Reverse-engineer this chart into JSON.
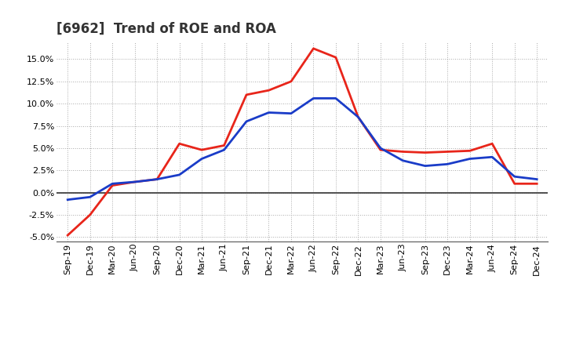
{
  "title": "[6962]  Trend of ROE and ROA",
  "labels": [
    "Sep-19",
    "Dec-19",
    "Mar-20",
    "Jun-20",
    "Sep-20",
    "Dec-20",
    "Mar-21",
    "Jun-21",
    "Sep-21",
    "Dec-21",
    "Mar-22",
    "Jun-22",
    "Sep-22",
    "Dec-22",
    "Mar-23",
    "Jun-23",
    "Sep-23",
    "Dec-23",
    "Mar-24",
    "Jun-24",
    "Sep-24",
    "Dec-24"
  ],
  "ROE": [
    -4.8,
    -2.5,
    0.8,
    1.2,
    1.5,
    5.5,
    4.8,
    5.3,
    11.0,
    11.5,
    12.5,
    16.2,
    15.2,
    8.5,
    4.8,
    4.6,
    4.5,
    4.6,
    4.7,
    5.5,
    1.0,
    1.0
  ],
  "ROA": [
    -0.8,
    -0.5,
    1.0,
    1.2,
    1.5,
    2.0,
    3.8,
    4.8,
    8.0,
    9.0,
    8.9,
    10.6,
    10.6,
    8.5,
    5.0,
    3.6,
    3.0,
    3.2,
    3.8,
    4.0,
    1.8,
    1.5
  ],
  "roe_color": "#e8251a",
  "roa_color": "#1a3cc8",
  "background_color": "#ffffff",
  "plot_bg_color": "#ffffff",
  "grid_color": "#aaaaaa",
  "ylim": [
    -5.5,
    17.0
  ],
  "yticks": [
    -5.0,
    -2.5,
    0.0,
    2.5,
    5.0,
    7.5,
    10.0,
    12.5,
    15.0
  ],
  "line_width": 2.0,
  "title_fontsize": 12,
  "tick_fontsize": 8,
  "legend_fontsize": 10
}
